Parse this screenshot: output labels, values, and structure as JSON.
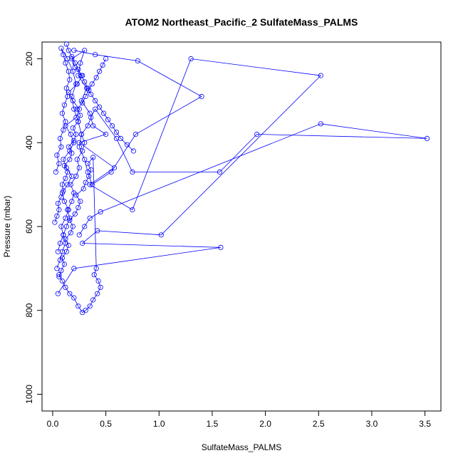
{
  "chart_data": {
    "type": "scatter",
    "title": "ATOM2 Northeast_Pacific_2 SulfateMass_PALMS",
    "xlabel": "SulfateMass_PALMS",
    "ylabel": "Pressure (mbar)",
    "xlim": [
      -0.1,
      3.65
    ],
    "ylim": [
      1040,
      160
    ],
    "y_reversed": true,
    "x_ticks": [
      0.0,
      0.5,
      1.0,
      1.5,
      2.0,
      2.5,
      3.0,
      3.5
    ],
    "x_tick_labels": [
      "0.0",
      "0.5",
      "1.0",
      "1.5",
      "2.0",
      "2.5",
      "3.0",
      "3.5"
    ],
    "y_ticks": [
      200,
      400,
      600,
      800,
      1000
    ],
    "y_tick_labels": [
      "200",
      "400",
      "600",
      "800",
      "1000"
    ],
    "marker": "open-circle",
    "series_color": "#0000ff",
    "grid": false,
    "series": [
      {
        "x": [
          0.05,
          0.07,
          0.1,
          0.08,
          0.12,
          0.15,
          0.11,
          0.09,
          0.14,
          0.18,
          0.13,
          0.1,
          0.16,
          0.2,
          0.17,
          0.12,
          0.22,
          0.25,
          0.19,
          0.15,
          0.23,
          0.28,
          0.21,
          0.18,
          0.3,
          0.26,
          0.24,
          0.32,
          0.27,
          0.35,
          0.38,
          0.5,
          0.25,
          0.58,
          0.35,
          0.75,
          1.3,
          2.52,
          1.02,
          0.42,
          0.28,
          1.58,
          0.2,
          0.05
        ],
        "y": [
          660,
          640,
          620,
          600,
          580,
          560,
          540,
          520,
          500,
          480,
          460,
          440,
          420,
          400,
          380,
          360,
          340,
          320,
          300,
          280,
          260,
          240,
          220,
          200,
          180,
          210,
          240,
          270,
          300,
          330,
          360,
          380,
          400,
          460,
          500,
          560,
          200,
          240,
          620,
          610,
          640,
          650,
          700,
          760
        ]
      },
      {
        "x": [
          0.03,
          0.06,
          0.04,
          0.08,
          0.07,
          0.1,
          0.12,
          0.09,
          0.11,
          0.14,
          0.13,
          0.16,
          0.15,
          0.12,
          0.1,
          0.08,
          0.14,
          0.19,
          0.22,
          0.18,
          0.2,
          0.24,
          0.27,
          0.25,
          0.3,
          0.33,
          0.37,
          0.55,
          0.78,
          1.4,
          0.8,
          0.4,
          0.2
        ],
        "y": [
          470,
          450,
          430,
          410,
          390,
          370,
          350,
          330,
          310,
          290,
          270,
          250,
          230,
          210,
          190,
          175,
          200,
          230,
          260,
          290,
          320,
          350,
          380,
          410,
          440,
          470,
          500,
          470,
          380,
          290,
          205,
          190,
          180
        ]
      },
      {
        "x": [
          0.04,
          0.07,
          0.09,
          0.12,
          0.1,
          0.13,
          0.16,
          0.14,
          0.18,
          0.2,
          0.17,
          0.22,
          0.25,
          0.23,
          0.28,
          0.3,
          0.27,
          0.33,
          0.36,
          0.4,
          0.6,
          0.75,
          1.57,
          1.92,
          3.52,
          2.52,
          0.45,
          0.35,
          0.3,
          0.25
        ],
        "y": [
          700,
          680,
          660,
          640,
          620,
          600,
          580,
          560,
          540,
          520,
          500,
          480,
          460,
          440,
          420,
          400,
          380,
          360,
          340,
          320,
          390,
          470,
          470,
          380,
          390,
          355,
          565,
          580,
          600,
          620
        ]
      },
      {
        "x": [
          0.06,
          0.08,
          0.11,
          0.09,
          0.13,
          0.15,
          0.12,
          0.17,
          0.19,
          0.16,
          0.21,
          0.24,
          0.26,
          0.22,
          0.29,
          0.31,
          0.34,
          0.36,
          0.33,
          0.38,
          0.41,
          0.39,
          0.43,
          0.45,
          0.42,
          0.38,
          0.35,
          0.31,
          0.28,
          0.24,
          0.2,
          0.16,
          0.12,
          0.09,
          0.06
        ],
        "y": [
          720,
          705,
          690,
          675,
          660,
          645,
          630,
          615,
          600,
          585,
          570,
          555,
          540,
          525,
          510,
          495,
          480,
          465,
          450,
          435,
          700,
          715,
          730,
          745,
          760,
          775,
          790,
          800,
          805,
          790,
          770,
          760,
          745,
          730,
          715
        ]
      },
      {
        "x": [
          0.02,
          0.04,
          0.06,
          0.05,
          0.08,
          0.1,
          0.09,
          0.12,
          0.14,
          0.11,
          0.16,
          0.18,
          0.15,
          0.2,
          0.22,
          0.19,
          0.24,
          0.26,
          0.23,
          0.28,
          0.31,
          0.34,
          0.37,
          0.41,
          0.44,
          0.47,
          0.5
        ],
        "y": [
          590,
          575,
          560,
          545,
          530,
          515,
          500,
          485,
          470,
          455,
          440,
          425,
          410,
          395,
          380,
          365,
          350,
          335,
          320,
          305,
          290,
          275,
          260,
          245,
          230,
          215,
          200
        ]
      },
      {
        "x": [
          0.13,
          0.15,
          0.18,
          0.21,
          0.24,
          0.27,
          0.3,
          0.33,
          0.36,
          0.4,
          0.44,
          0.48,
          0.52,
          0.56,
          0.6,
          0.64,
          0.7,
          0.76
        ],
        "y": [
          165,
          180,
          195,
          210,
          225,
          240,
          255,
          270,
          285,
          300,
          315,
          330,
          345,
          360,
          375,
          390,
          405,
          420
        ]
      }
    ]
  }
}
